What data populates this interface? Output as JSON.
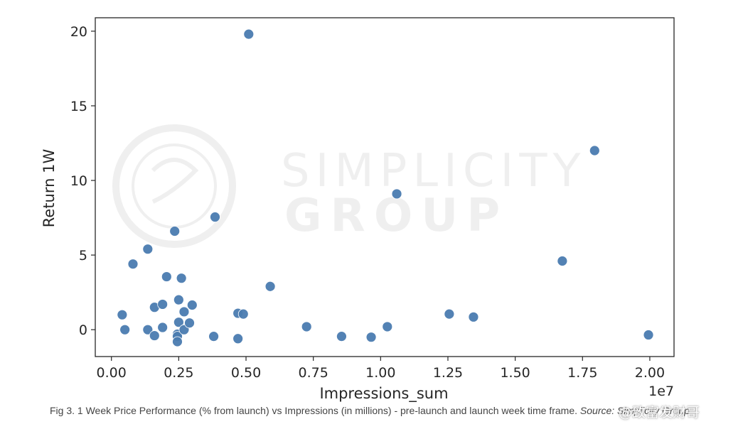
{
  "chart_data": {
    "type": "scatter",
    "xlabel": "Impressions_sum",
    "ylabel": "Return 1W",
    "x_offset_label": "1e7",
    "xlim": [
      -0.06,
      2.09
    ],
    "ylim": [
      -1.8,
      20.9
    ],
    "x_ticks": [
      "0.00",
      "0.25",
      "0.50",
      "0.75",
      "1.00",
      "1.25",
      "1.50",
      "1.75",
      "2.00"
    ],
    "y_ticks": [
      "0",
      "5",
      "10",
      "15",
      "20"
    ],
    "grid": false,
    "marker_color": "#4a7bb0",
    "points": [
      {
        "x": 0.04,
        "y": 1.0
      },
      {
        "x": 0.05,
        "y": 0.0
      },
      {
        "x": 0.08,
        "y": 4.4
      },
      {
        "x": 0.135,
        "y": 5.4
      },
      {
        "x": 0.135,
        "y": 0.0
      },
      {
        "x": 0.16,
        "y": 1.5
      },
      {
        "x": 0.16,
        "y": -0.4
      },
      {
        "x": 0.19,
        "y": 1.7
      },
      {
        "x": 0.19,
        "y": 0.15
      },
      {
        "x": 0.205,
        "y": 3.55
      },
      {
        "x": 0.235,
        "y": 6.6
      },
      {
        "x": 0.245,
        "y": -0.3
      },
      {
        "x": 0.245,
        "y": -0.45
      },
      {
        "x": 0.245,
        "y": -0.8
      },
      {
        "x": 0.25,
        "y": 2.0
      },
      {
        "x": 0.25,
        "y": 0.5
      },
      {
        "x": 0.26,
        "y": 3.45
      },
      {
        "x": 0.27,
        "y": 1.2
      },
      {
        "x": 0.27,
        "y": 0.0
      },
      {
        "x": 0.29,
        "y": 0.45
      },
      {
        "x": 0.3,
        "y": 1.65
      },
      {
        "x": 0.38,
        "y": -0.45
      },
      {
        "x": 0.385,
        "y": 7.55
      },
      {
        "x": 0.47,
        "y": -0.6
      },
      {
        "x": 0.47,
        "y": 1.1
      },
      {
        "x": 0.49,
        "y": 1.05
      },
      {
        "x": 0.51,
        "y": 19.8
      },
      {
        "x": 0.59,
        "y": 2.9
      },
      {
        "x": 0.725,
        "y": 0.2
      },
      {
        "x": 0.855,
        "y": -0.45
      },
      {
        "x": 0.965,
        "y": -0.5
      },
      {
        "x": 1.025,
        "y": 0.2
      },
      {
        "x": 1.06,
        "y": 9.1
      },
      {
        "x": 1.255,
        "y": 1.05
      },
      {
        "x": 1.345,
        "y": 0.85
      },
      {
        "x": 1.675,
        "y": 4.6
      },
      {
        "x": 1.795,
        "y": 12.0
      },
      {
        "x": 1.995,
        "y": -0.35
      }
    ]
  },
  "caption": {
    "text": "Fig 3. 1 Week Price Performance (% from launch) vs Impressions (in millions) - pre-launch and launch week time frame.",
    "source": "Source: Simplicity Group"
  },
  "watermarks": {
    "brand_line1": "SIMPLICITY",
    "brand_line2": "GROUP",
    "corner_text": "@致富发财哥"
  }
}
